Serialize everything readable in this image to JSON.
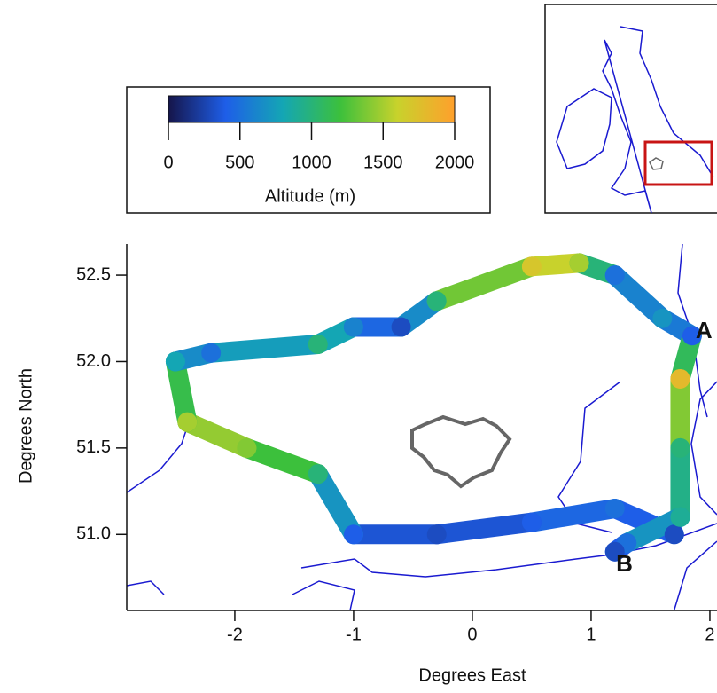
{
  "chart_data": {
    "type": "track",
    "xlabel": "Degrees East",
    "ylabel": "Degrees North",
    "xlim": [
      -2.91,
      2.06
    ],
    "ylim": [
      50.56,
      52.68
    ],
    "xticks": [
      -2,
      -1,
      0,
      1,
      2
    ],
    "yticks": [
      {
        "value": 51,
        "label": "51.0"
      },
      51.5,
      {
        "value": 52,
        "label": "52.0"
      },
      52.5
    ],
    "colorbar": {
      "label": "Altitude (m)",
      "lim": [
        0,
        2000
      ],
      "ticks": [
        0,
        500,
        1000,
        1500,
        2000
      ],
      "colors": [
        "#15154a",
        "#1e5ee8",
        "#14a6b4",
        "#3cc03c",
        "#c8d22c",
        "#ffa02c"
      ]
    },
    "track": {
      "lon": [
        1.7,
        1.2,
        0.5,
        -0.3,
        -1.0,
        -1.3,
        -1.9,
        -2.4,
        -2.5,
        -2.2,
        -1.3,
        -1.0,
        -0.6,
        -0.3,
        0.5,
        0.9,
        1.2,
        1.6,
        1.85,
        1.75,
        1.75,
        1.75,
        1.3,
        1.2
      ],
      "lat": [
        51.0,
        51.15,
        51.07,
        51.0,
        51.0,
        51.35,
        51.5,
        51.65,
        52.0,
        52.05,
        52.1,
        52.2,
        52.2,
        52.35,
        52.55,
        52.57,
        52.5,
        52.25,
        52.15,
        51.9,
        51.5,
        51.1,
        50.95,
        50.9
      ],
      "altitude": [
        300,
        500,
        400,
        300,
        400,
        1000,
        1400,
        1500,
        800,
        500,
        1000,
        600,
        300,
        1000,
        1700,
        1500,
        500,
        700,
        400,
        1800,
        1000,
        900,
        500,
        300
      ]
    },
    "annotations": [
      {
        "text": "A",
        "x": 1.95,
        "y": 52.17
      },
      {
        "text": "B",
        "x": 1.28,
        "y": 50.82
      }
    ]
  }
}
